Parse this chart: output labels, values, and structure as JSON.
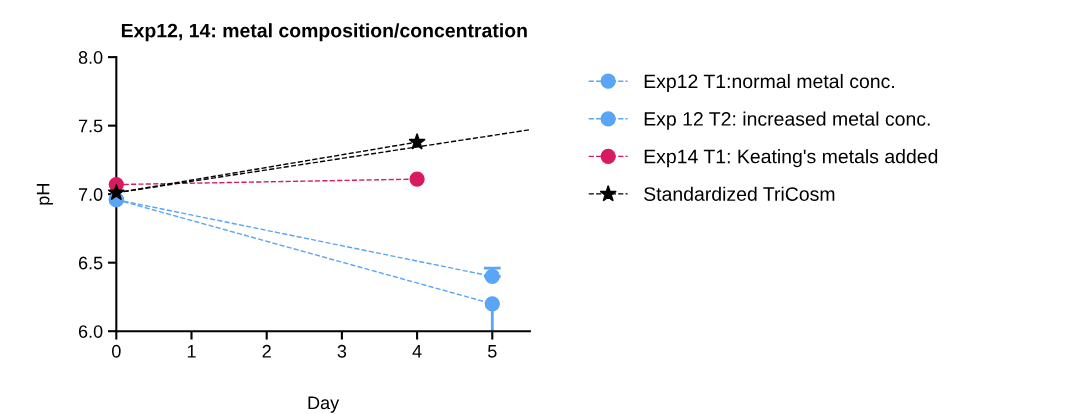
{
  "chart_data": {
    "type": "line",
    "title": "Exp12, 14: metal composition/concentration",
    "xlabel": "Day",
    "ylabel": "pH",
    "xlim": [
      0,
      5.5
    ],
    "xticks": [
      0,
      1,
      2,
      3,
      4,
      5
    ],
    "ylim": [
      6.0,
      8.0
    ],
    "yticks": [
      {
        "value": 6.0,
        "label": "6.0"
      },
      {
        "value": 6.5,
        "label": "6.5"
      },
      {
        "value": 7.0,
        "label": "7.0"
      },
      {
        "value": 7.5,
        "label": "7.5"
      },
      {
        "value": 8.0,
        "label": "8.0"
      }
    ],
    "grid": false,
    "legend": "right",
    "line_style": "dashed",
    "series": [
      {
        "name": "Exp12 T1:normal metal conc.",
        "color": "#5aa5f5",
        "marker": "circle",
        "x": [
          0,
          5
        ],
        "values": [
          6.96,
          6.2
        ],
        "errors": [
          null,
          [
            6.0,
            6.2
          ]
        ]
      },
      {
        "name": "Exp 12 T2: increased metal conc.",
        "color": "#5aa5f5",
        "marker": "circle",
        "x": [
          0,
          5
        ],
        "values": [
          6.96,
          6.4
        ],
        "errors": [
          null,
          [
            6.4,
            6.46
          ]
        ]
      },
      {
        "name": "Exp14 T1: Keating's metals added",
        "color": "#d81b60",
        "marker": "circle",
        "x": [
          0,
          4
        ],
        "values": [
          7.07,
          7.11
        ]
      },
      {
        "name": "Standardized TriCosm",
        "color": "#000000",
        "marker": "star",
        "x": [
          0,
          4
        ],
        "values": [
          7.01,
          7.38
        ]
      },
      {
        "type": "line",
        "color": "#000000",
        "marker": "none",
        "x": [
          0,
          5.5
        ],
        "values": [
          7.01,
          7.47
        ]
      }
    ]
  }
}
